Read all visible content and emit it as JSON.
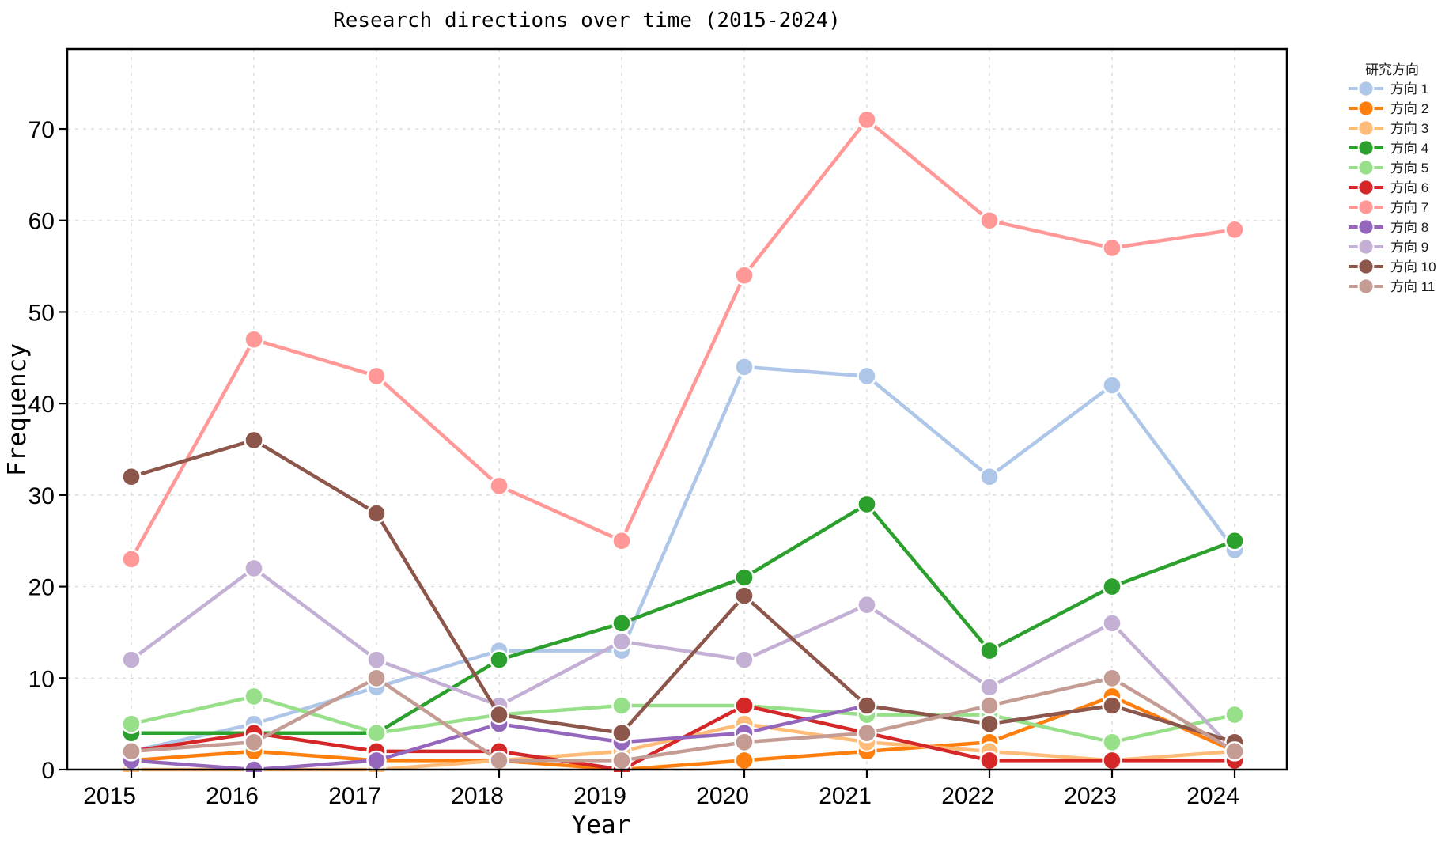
{
  "chart_data": {
    "type": "line",
    "title": "Research directions over time (2015-2024)",
    "xlabel": "Year",
    "ylabel": "Frequency",
    "x": [
      2015,
      2016,
      2017,
      2018,
      2019,
      2020,
      2021,
      2022,
      2023,
      2024
    ],
    "yticks": [
      0,
      10,
      20,
      30,
      40,
      50,
      60,
      70
    ],
    "ylim": [
      0,
      78.7
    ],
    "grid": true,
    "grid_style": "dashed",
    "legend": {
      "title": "研究方向",
      "position": "right-outside",
      "entries": [
        "方向 1",
        "方向 2",
        "方向 3",
        "方向 4",
        "方向 5",
        "方向 6",
        "方向 7",
        "方向 8",
        "方向 9",
        "方向 10",
        "方向 11"
      ]
    },
    "series": [
      {
        "name": "方向 1",
        "color": "#aec7e8",
        "values": [
          2,
          5,
          9,
          13,
          13,
          44,
          43,
          32,
          42,
          24
        ]
      },
      {
        "name": "方向 2",
        "color": "#ff7f0e",
        "values": [
          1,
          2,
          1,
          1,
          0,
          1,
          2,
          3,
          8,
          2
        ]
      },
      {
        "name": "方向 3",
        "color": "#ffbb78",
        "values": [
          0,
          0,
          0,
          1,
          2,
          5,
          3,
          2,
          1,
          2
        ]
      },
      {
        "name": "方向 4",
        "color": "#2ca02c",
        "values": [
          4,
          4,
          4,
          12,
          16,
          21,
          29,
          13,
          20,
          25
        ]
      },
      {
        "name": "方向 5",
        "color": "#98df8a",
        "values": [
          5,
          8,
          4,
          6,
          7,
          7,
          6,
          6,
          3,
          6
        ]
      },
      {
        "name": "方向 6",
        "color": "#d62728",
        "values": [
          2,
          4,
          2,
          2,
          0,
          7,
          4,
          1,
          1,
          1
        ]
      },
      {
        "name": "方向 7",
        "color": "#ff9896",
        "values": [
          23,
          47,
          43,
          31,
          25,
          54,
          71,
          60,
          57,
          59
        ]
      },
      {
        "name": "方向 8",
        "color": "#9467bd",
        "values": [
          1,
          0,
          1,
          5,
          3,
          4,
          7,
          5,
          7,
          3
        ]
      },
      {
        "name": "方向 9",
        "color": "#c5b0d5",
        "values": [
          12,
          22,
          12,
          7,
          14,
          12,
          18,
          9,
          16,
          2
        ]
      },
      {
        "name": "方向 10",
        "color": "#8c564b",
        "values": [
          32,
          36,
          28,
          6,
          4,
          19,
          7,
          5,
          7,
          3
        ]
      },
      {
        "name": "方向 11",
        "color": "#c49c94",
        "values": [
          2,
          3,
          10,
          1,
          1,
          3,
          4,
          7,
          10,
          2
        ]
      }
    ],
    "style": {
      "background": "#ffffff",
      "spine_color": "#000000",
      "grid_color": "#dcdcdc",
      "line_width": 4.5,
      "marker_radius": 11.5,
      "marker_edge_color": "#ffffff"
    }
  }
}
